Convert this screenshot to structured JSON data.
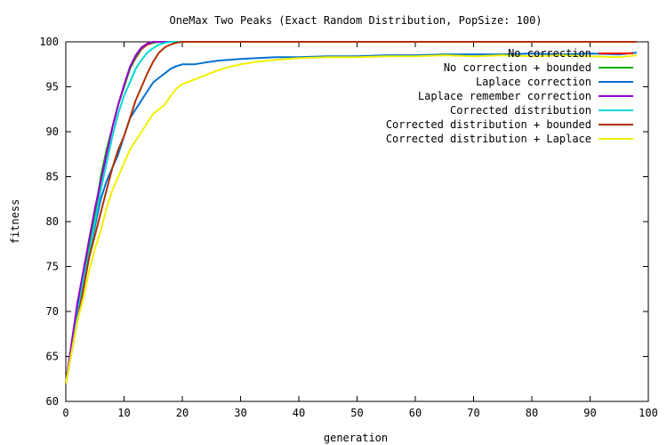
{
  "chart_data": {
    "type": "line",
    "title": "OneMax Two Peaks (Exact Random Distribution, PopSize: 100)",
    "xlabel": "generation",
    "ylabel": "fitness",
    "xlim": [
      0,
      100
    ],
    "ylim": [
      60,
      100
    ],
    "xticks": [
      0,
      10,
      20,
      30,
      40,
      50,
      60,
      70,
      80,
      90,
      100
    ],
    "yticks": [
      60,
      65,
      70,
      75,
      80,
      85,
      90,
      95,
      100
    ],
    "grid": false,
    "legend_position": "top-right",
    "series": [
      {
        "name": "No correction",
        "color": "#ff0000",
        "x": [
          0,
          1,
          2,
          3,
          4,
          5,
          6,
          7,
          8,
          9,
          10,
          11,
          12,
          13,
          14,
          15,
          16,
          17,
          18,
          19,
          20,
          22,
          25,
          30,
          40,
          50,
          60,
          70,
          80,
          90,
          98
        ],
        "y": [
          62,
          66,
          70,
          74,
          77.5,
          81,
          84.5,
          87.5,
          90.5,
          93,
          95,
          97,
          98.2,
          99.2,
          99.7,
          99.9,
          100,
          100,
          100,
          100,
          100,
          100,
          100,
          100,
          100,
          100,
          100,
          100,
          100,
          100,
          100
        ]
      },
      {
        "name": "No correction + bounded",
        "color": "#00b000",
        "x": [
          0,
          1,
          2,
          3,
          4,
          5,
          6,
          7,
          8,
          9,
          10,
          11,
          12,
          13,
          14,
          15,
          16,
          17,
          18,
          19,
          20,
          25,
          30,
          40,
          50,
          60,
          70,
          80,
          90,
          98
        ],
        "y": [
          62,
          66,
          70.5,
          74,
          77.5,
          81,
          85,
          88,
          90.5,
          93,
          95,
          97,
          98.3,
          99.3,
          99.8,
          99.9,
          100,
          100,
          100,
          100,
          100,
          100,
          100,
          100,
          100,
          100,
          100,
          100,
          100,
          100
        ]
      },
      {
        "name": "Laplace correction",
        "color": "#0070d0",
        "x": [
          0,
          1,
          2,
          3,
          4,
          5,
          6,
          7,
          8,
          9,
          10,
          11,
          12,
          13,
          14,
          15,
          16,
          17,
          18,
          19,
          20,
          22,
          24,
          26,
          28,
          30,
          33,
          36,
          40,
          45,
          50,
          55,
          60,
          65,
          70,
          75,
          80,
          85,
          90,
          95,
          98
        ],
        "y": [
          62,
          66,
          70,
          73.5,
          76.5,
          79.5,
          82.5,
          84.5,
          86,
          87.5,
          89.5,
          91.5,
          92.5,
          93.5,
          94.5,
          95.5,
          96,
          96.5,
          97,
          97.3,
          97.5,
          97.5,
          97.7,
          97.9,
          98,
          98.1,
          98.2,
          98.3,
          98.3,
          98.4,
          98.4,
          98.5,
          98.5,
          98.6,
          98.6,
          98.6,
          98.7,
          98.6,
          98.7,
          98.6,
          98.8
        ]
      },
      {
        "name": "Laplace remember correction",
        "color": "#9a00d0",
        "x": [
          0,
          1,
          2,
          3,
          4,
          5,
          6,
          7,
          8,
          9,
          10,
          11,
          12,
          13,
          14,
          15,
          16,
          17,
          18,
          19,
          20,
          25,
          30,
          40,
          50,
          60,
          70,
          80,
          90,
          98
        ],
        "y": [
          62,
          66.5,
          71,
          74.5,
          78,
          81.5,
          84.5,
          87.5,
          90.5,
          93,
          95.2,
          97.2,
          98.5,
          99.4,
          99.8,
          100,
          100,
          100,
          100,
          100,
          100,
          100,
          100,
          100,
          100,
          100,
          100,
          100,
          100,
          100
        ]
      },
      {
        "name": "Corrected distribution",
        "color": "#00d8d8",
        "x": [
          0,
          1,
          2,
          3,
          4,
          5,
          6,
          7,
          8,
          9,
          10,
          11,
          12,
          13,
          14,
          15,
          16,
          17,
          18,
          19,
          20,
          25,
          30,
          40,
          50,
          60,
          70,
          80,
          90,
          98
        ],
        "y": [
          62,
          65.5,
          69.5,
          73.5,
          76.5,
          80,
          83.5,
          86.5,
          89.5,
          92,
          94,
          95.5,
          97,
          98,
          98.8,
          99.3,
          99.7,
          99.9,
          100,
          100,
          100,
          100,
          100,
          100,
          100,
          100,
          100,
          100,
          100,
          100
        ]
      },
      {
        "name": "Corrected distribution + bounded",
        "color": "#b03000",
        "x": [
          0,
          1,
          2,
          3,
          4,
          5,
          6,
          7,
          8,
          9,
          10,
          11,
          12,
          13,
          14,
          15,
          16,
          17,
          18,
          19,
          20,
          25,
          30,
          40,
          50,
          60,
          70,
          80,
          90,
          98
        ],
        "y": [
          62,
          65.5,
          69,
          72.5,
          76,
          78.5,
          81,
          83.5,
          86,
          88,
          89.5,
          91.5,
          93.5,
          95,
          96.5,
          97.8,
          98.8,
          99.4,
          99.7,
          99.9,
          100,
          100,
          100,
          100,
          100,
          100,
          100,
          100,
          100,
          100
        ]
      },
      {
        "name": "Corrected distribution + Laplace",
        "color": "#f0f000",
        "x": [
          0,
          1,
          2,
          3,
          4,
          5,
          6,
          7,
          8,
          9,
          10,
          11,
          12,
          13,
          14,
          15,
          16,
          17,
          18,
          19,
          20,
          22,
          24,
          26,
          28,
          30,
          33,
          36,
          40,
          45,
          50,
          55,
          60,
          65,
          70,
          75,
          80,
          85,
          90,
          95,
          98
        ],
        "y": [
          62,
          65.5,
          69,
          71.5,
          74.5,
          77,
          79,
          81.5,
          83.5,
          85,
          86.5,
          88,
          89,
          90,
          91,
          92,
          92.5,
          93,
          94,
          94.8,
          95.3,
          95.8,
          96.3,
          96.8,
          97.2,
          97.5,
          97.8,
          98,
          98.2,
          98.3,
          98.3,
          98.4,
          98.4,
          98.5,
          98.4,
          98.5,
          98.4,
          98.5,
          98.4,
          98.3,
          98.5
        ]
      }
    ]
  }
}
